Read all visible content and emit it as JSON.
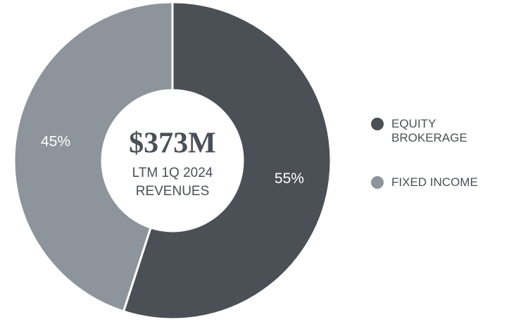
{
  "chart_data": {
    "type": "pie",
    "center_title": "$373M",
    "center_lines": [
      "LTM 1Q 2024",
      "REVENUES"
    ],
    "categories": [
      "EQUITY BROKERAGE",
      "FIXED INCOME"
    ],
    "values": [
      55,
      45
    ],
    "value_labels": [
      "55%",
      "45%"
    ],
    "colors": [
      "#4b4f56",
      "#8e949b"
    ],
    "legend": "right"
  }
}
